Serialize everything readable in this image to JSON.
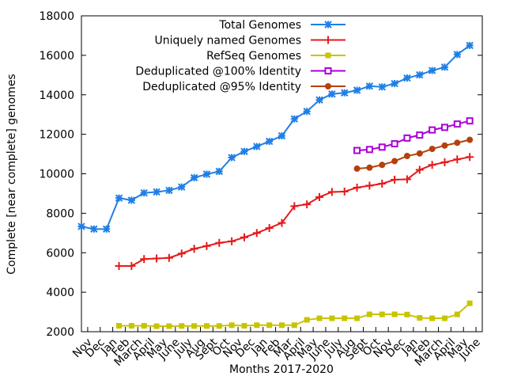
{
  "chart_data": {
    "type": "line",
    "title": "",
    "xlabel": "Months 2017-2020",
    "ylabel": "Complete [near complete] genomes",
    "ylim": [
      2000,
      18000
    ],
    "yticks": [
      2000,
      4000,
      6000,
      8000,
      10000,
      12000,
      14000,
      16000,
      18000
    ],
    "legend_position": "top-right",
    "x_tick_labels": [
      "Nov",
      "Dec",
      "Jan",
      "Feb",
      "March",
      "April",
      "May",
      "June",
      "July",
      "Aug",
      "Sept",
      "Oct",
      "Nov",
      "Dec",
      "Jan",
      "Feb",
      "Mar",
      "April",
      "May",
      "June",
      "July",
      "Aug",
      "Sept",
      "Oct",
      "Nov",
      "Dec",
      "Jan",
      "Feb",
      "March",
      "April",
      "May",
      "June"
    ],
    "x_domain": [
      0,
      32
    ],
    "x_tick_offset": 0.5,
    "series": [
      {
        "name": "Total Genomes",
        "color": "#1f7fe6",
        "marker": "star",
        "points": [
          [
            0,
            7330
          ],
          [
            1,
            7200
          ],
          [
            2,
            7200
          ],
          [
            3,
            8770
          ],
          [
            4,
            8660
          ],
          [
            5,
            9030
          ],
          [
            6,
            9080
          ],
          [
            7,
            9160
          ],
          [
            8,
            9330
          ],
          [
            9,
            9800
          ],
          [
            10,
            9980
          ],
          [
            11,
            10120
          ],
          [
            12,
            10820
          ],
          [
            13,
            11130
          ],
          [
            14,
            11380
          ],
          [
            15,
            11640
          ],
          [
            16,
            11920
          ],
          [
            17,
            12780
          ],
          [
            18,
            13160
          ],
          [
            19,
            13740
          ],
          [
            20,
            14040
          ],
          [
            21,
            14100
          ],
          [
            22,
            14230
          ],
          [
            23,
            14440
          ],
          [
            24,
            14400
          ],
          [
            25,
            14570
          ],
          [
            26,
            14850
          ],
          [
            27,
            15010
          ],
          [
            28,
            15230
          ],
          [
            29,
            15400
          ],
          [
            30,
            16040
          ],
          [
            31,
            16500
          ]
        ]
      },
      {
        "name": "Uniquely named Genomes",
        "color": "#e61a1a",
        "marker": "plus",
        "points": [
          [
            3,
            5330
          ],
          [
            4,
            5330
          ],
          [
            5,
            5680
          ],
          [
            6,
            5710
          ],
          [
            7,
            5740
          ],
          [
            8,
            5960
          ],
          [
            9,
            6200
          ],
          [
            10,
            6340
          ],
          [
            11,
            6500
          ],
          [
            12,
            6580
          ],
          [
            13,
            6780
          ],
          [
            14,
            7000
          ],
          [
            15,
            7250
          ],
          [
            16,
            7510
          ],
          [
            17,
            8360
          ],
          [
            18,
            8450
          ],
          [
            19,
            8820
          ],
          [
            20,
            9080
          ],
          [
            21,
            9100
          ],
          [
            22,
            9300
          ],
          [
            23,
            9400
          ],
          [
            24,
            9500
          ],
          [
            25,
            9700
          ],
          [
            26,
            9720
          ],
          [
            27,
            10200
          ],
          [
            28,
            10450
          ],
          [
            29,
            10580
          ],
          [
            30,
            10730
          ],
          [
            31,
            10850
          ]
        ]
      },
      {
        "name": "RefSeq Genomes",
        "color": "#c8c400",
        "marker": "filled-square",
        "points": [
          [
            3,
            2300
          ],
          [
            4,
            2300
          ],
          [
            5,
            2300
          ],
          [
            6,
            2280
          ],
          [
            7,
            2280
          ],
          [
            8,
            2290
          ],
          [
            9,
            2290
          ],
          [
            10,
            2290
          ],
          [
            11,
            2290
          ],
          [
            12,
            2330
          ],
          [
            13,
            2300
          ],
          [
            14,
            2330
          ],
          [
            15,
            2330
          ],
          [
            16,
            2330
          ],
          [
            17,
            2330
          ],
          [
            18,
            2600
          ],
          [
            19,
            2680
          ],
          [
            20,
            2680
          ],
          [
            21,
            2680
          ],
          [
            22,
            2680
          ],
          [
            23,
            2880
          ],
          [
            24,
            2880
          ],
          [
            25,
            2880
          ],
          [
            26,
            2870
          ],
          [
            27,
            2700
          ],
          [
            28,
            2680
          ],
          [
            29,
            2680
          ],
          [
            30,
            2880
          ],
          [
            31,
            3440
          ]
        ]
      },
      {
        "name": "Deduplicated @100% Identity",
        "color": "#aa00d8",
        "marker": "open-square",
        "points": [
          [
            22,
            11180
          ],
          [
            23,
            11230
          ],
          [
            24,
            11350
          ],
          [
            25,
            11520
          ],
          [
            26,
            11810
          ],
          [
            27,
            11960
          ],
          [
            28,
            12220
          ],
          [
            29,
            12350
          ],
          [
            30,
            12520
          ],
          [
            31,
            12680
          ]
        ]
      },
      {
        "name": "Deduplicated @95% Identity",
        "color": "#b5400e",
        "marker": "filled-circle",
        "points": [
          [
            22,
            10260
          ],
          [
            23,
            10310
          ],
          [
            24,
            10450
          ],
          [
            25,
            10640
          ],
          [
            26,
            10900
          ],
          [
            27,
            11030
          ],
          [
            28,
            11260
          ],
          [
            29,
            11430
          ],
          [
            30,
            11570
          ],
          [
            31,
            11720
          ]
        ]
      }
    ]
  }
}
